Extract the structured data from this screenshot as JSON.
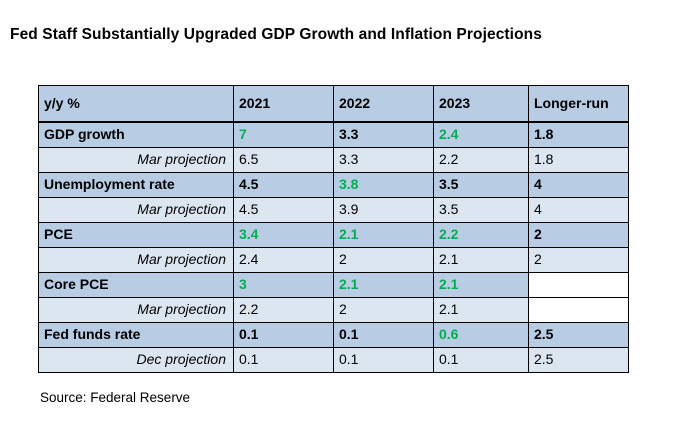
{
  "title": "Fed Staff Substantially Upgraded GDP Growth and Inflation Projections",
  "source": "Source: Federal Reserve",
  "colors": {
    "header_bg": "#b8cce4",
    "main_row_bg": "#b8cce4",
    "proj_row_bg": "#dce6f1",
    "green": "#00b050",
    "border": "#000000"
  },
  "chart_data": {
    "type": "table",
    "columns": [
      "y/y  %",
      "2021",
      "2022",
      "2023",
      "Longer-run"
    ],
    "rows": [
      {
        "label": "GDP growth",
        "style": "main",
        "values": [
          {
            "v": "7",
            "green": true
          },
          {
            "v": "3.3"
          },
          {
            "v": "2.4",
            "green": true
          },
          {
            "v": "1.8"
          }
        ]
      },
      {
        "label": "Mar projection",
        "style": "proj",
        "values": [
          {
            "v": "6.5"
          },
          {
            "v": "3.3"
          },
          {
            "v": "2.2"
          },
          {
            "v": "1.8"
          }
        ]
      },
      {
        "label": "Unemployment rate",
        "style": "main",
        "values": [
          {
            "v": "4.5"
          },
          {
            "v": "3.8",
            "green": true
          },
          {
            "v": "3.5"
          },
          {
            "v": "4"
          }
        ]
      },
      {
        "label": "Mar projection",
        "style": "proj",
        "values": [
          {
            "v": "4.5"
          },
          {
            "v": "3.9"
          },
          {
            "v": "3.5"
          },
          {
            "v": "4"
          }
        ]
      },
      {
        "label": "PCE",
        "style": "main",
        "values": [
          {
            "v": "3.4",
            "green": true
          },
          {
            "v": "2.1",
            "green": true
          },
          {
            "v": "2.2",
            "green": true
          },
          {
            "v": "2"
          }
        ]
      },
      {
        "label": "Mar projection",
        "style": "proj",
        "values": [
          {
            "v": "2.4"
          },
          {
            "v": "2"
          },
          {
            "v": "2.1"
          },
          {
            "v": "2"
          }
        ]
      },
      {
        "label": "Core PCE",
        "style": "main",
        "values": [
          {
            "v": "3",
            "green": true
          },
          {
            "v": "2.1",
            "green": true
          },
          {
            "v": "2.1",
            "green": true
          },
          {
            "v": "",
            "blank": true
          }
        ]
      },
      {
        "label": "Mar projection",
        "style": "proj",
        "values": [
          {
            "v": "2.2"
          },
          {
            "v": "2"
          },
          {
            "v": "2.1"
          },
          {
            "v": "",
            "blank": true
          }
        ]
      },
      {
        "label": "Fed funds rate",
        "style": "main",
        "values": [
          {
            "v": "0.1"
          },
          {
            "v": "0.1"
          },
          {
            "v": "0.6",
            "green": true
          },
          {
            "v": "2.5"
          }
        ]
      },
      {
        "label": "Dec projection",
        "style": "proj",
        "values": [
          {
            "v": "0.1"
          },
          {
            "v": "0.1"
          },
          {
            "v": "0.1"
          },
          {
            "v": "2.5"
          }
        ]
      }
    ]
  }
}
